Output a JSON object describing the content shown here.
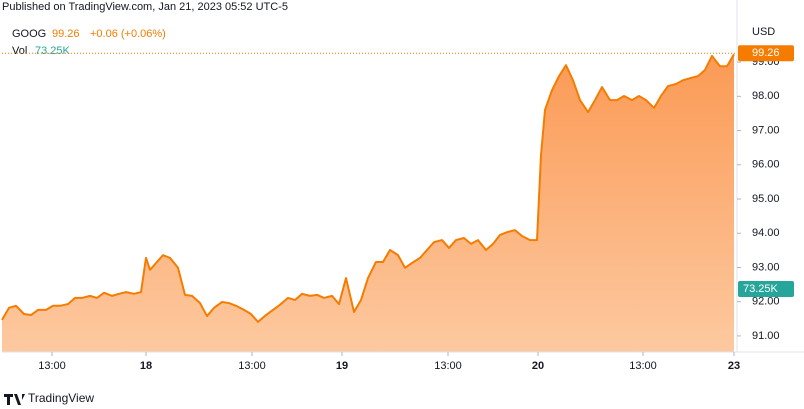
{
  "header": {
    "published": "Published on TradingView.com, Jan 21, 2023 05:52 UTC-5"
  },
  "chart_data": {
    "type": "area",
    "symbol": "GOOG",
    "last_price": 99.26,
    "change_label": "+0.06 (+0.06%)",
    "volume_label": "Vol",
    "last_volume": "73.25K",
    "currency": "USD",
    "x": [
      0,
      7,
      14,
      22,
      29,
      36,
      44,
      51,
      58,
      66,
      73,
      80,
      88,
      95,
      102,
      110,
      117,
      124,
      132,
      139,
      144,
      148,
      161,
      168,
      176,
      183,
      190,
      198,
      205,
      212,
      220,
      227,
      234,
      242,
      249,
      256,
      264,
      271,
      278,
      286,
      293,
      300,
      308,
      315,
      322,
      330,
      337,
      344,
      352,
      359,
      366,
      374,
      381,
      388,
      396,
      403,
      410,
      418,
      425,
      432,
      440,
      447,
      454,
      462,
      469,
      476,
      484,
      491,
      498,
      506,
      513,
      520,
      528,
      535,
      539,
      543,
      550,
      557,
      564,
      571,
      578,
      586,
      593,
      600,
      608,
      615,
      622,
      630,
      637,
      644,
      652,
      659,
      666,
      674,
      681,
      688,
      696,
      703,
      710,
      718,
      725,
      732
    ],
    "series": [
      {
        "name": "GOOG",
        "color": "#f57c00",
        "values": [
          91.47,
          91.82,
          91.88,
          91.64,
          91.61,
          91.76,
          91.76,
          91.88,
          91.88,
          91.93,
          92.11,
          92.11,
          92.17,
          92.11,
          92.26,
          92.17,
          92.23,
          92.28,
          92.23,
          92.28,
          93.28,
          92.93,
          93.36,
          93.28,
          92.99,
          92.2,
          92.17,
          91.96,
          91.58,
          91.82,
          91.99,
          91.96,
          91.88,
          91.76,
          91.64,
          91.41,
          91.61,
          91.76,
          91.91,
          92.11,
          92.05,
          92.23,
          92.17,
          92.2,
          92.11,
          92.17,
          91.93,
          92.69,
          91.7,
          92.05,
          92.69,
          93.16,
          93.16,
          93.51,
          93.36,
          92.99,
          93.13,
          93.28,
          93.51,
          93.74,
          93.8,
          93.57,
          93.8,
          93.86,
          93.69,
          93.8,
          93.51,
          93.69,
          93.95,
          94.04,
          94.09,
          93.92,
          93.8,
          93.8,
          96.28,
          97.6,
          98.18,
          98.59,
          98.91,
          98.47,
          97.89,
          97.54,
          97.89,
          98.27,
          97.89,
          97.89,
          98.01,
          97.89,
          98.01,
          97.89,
          97.66,
          98.01,
          98.3,
          98.36,
          98.47,
          98.53,
          98.59,
          98.77,
          99.18,
          98.88,
          98.88,
          99.23
        ]
      }
    ],
    "xlim": [
      0,
      735
    ],
    "xticks": [
      {
        "value": 50,
        "label": "13:00"
      },
      {
        "value": 144,
        "label": "18"
      },
      {
        "value": 250,
        "label": "13:00"
      },
      {
        "value": 340,
        "label": "19"
      },
      {
        "value": 446,
        "label": "13:00"
      },
      {
        "value": 536,
        "label": "20"
      },
      {
        "value": 641,
        "label": "13:00"
      },
      {
        "value": 732,
        "label": "23"
      }
    ],
    "ylim": [
      90.53,
      100.23
    ],
    "yticks": [
      {
        "value": 91,
        "label": "91.00"
      },
      {
        "value": 92,
        "label": "92.00"
      },
      {
        "value": 93,
        "label": "93.00"
      },
      {
        "value": 94,
        "label": "94.00"
      },
      {
        "value": 95,
        "label": "95.00"
      },
      {
        "value": 96,
        "label": "96.00"
      },
      {
        "value": 97,
        "label": "97.00"
      },
      {
        "value": 98,
        "label": "98.00"
      },
      {
        "value": 99,
        "label": "99.00"
      }
    ]
  },
  "footer": {
    "brand": "TradingView"
  }
}
